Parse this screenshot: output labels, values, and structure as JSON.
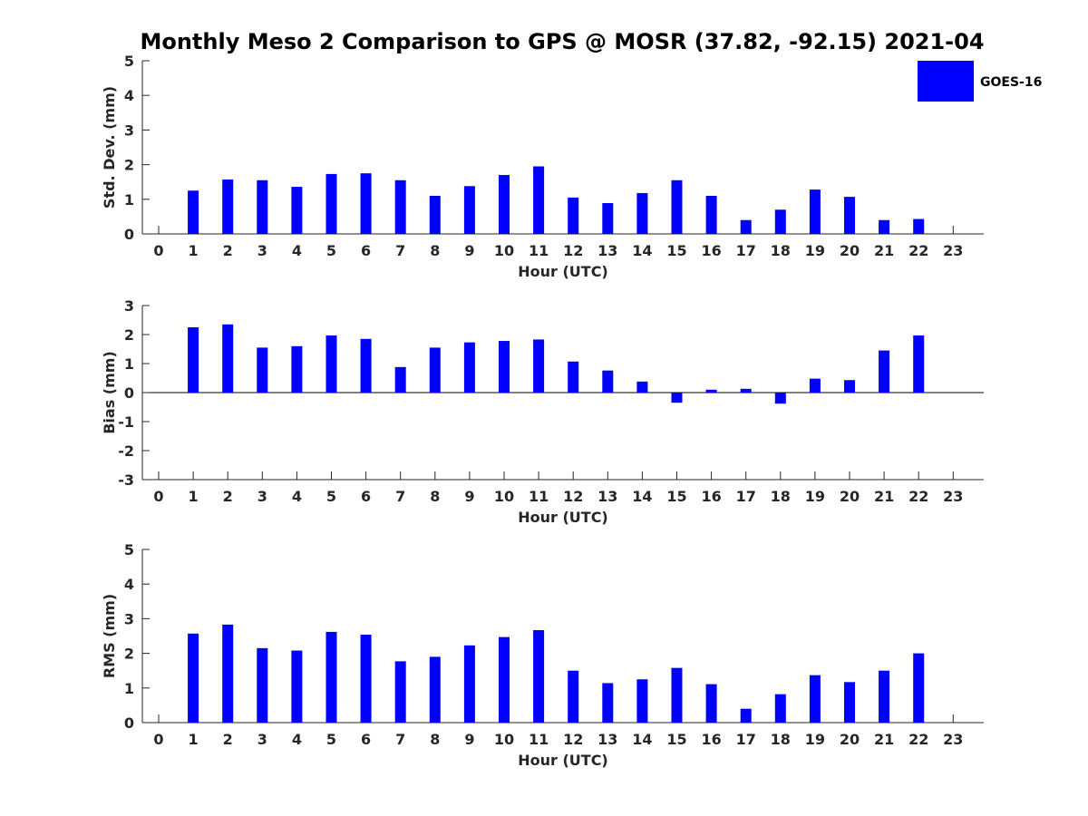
{
  "title": "Monthly Meso 2 Comparison to GPS @ MOSR (37.82, -92.15) 2021-04",
  "legend": {
    "label": "GOES-16",
    "color": "#0000ff"
  },
  "chart_data": [
    {
      "type": "bar",
      "xlabel": "Hour (UTC)",
      "ylabel": "Std. Dev. (mm)",
      "ylim": [
        0,
        5
      ],
      "yticks": [
        "0",
        "1",
        "2",
        "3",
        "4",
        "5"
      ],
      "xticks": [
        "0",
        "1",
        "2",
        "3",
        "4",
        "5",
        "6",
        "7",
        "8",
        "9",
        "10",
        "11",
        "12",
        "13",
        "14",
        "15",
        "16",
        "17",
        "18",
        "19",
        "20",
        "21",
        "22",
        "23"
      ],
      "series": [
        {
          "name": "GOES-16",
          "values": [
            null,
            1.25,
            1.57,
            1.55,
            1.36,
            1.73,
            1.75,
            1.55,
            1.1,
            1.38,
            1.7,
            1.95,
            1.05,
            0.89,
            1.18,
            1.55,
            1.1,
            0.4,
            0.7,
            1.28,
            1.07,
            0.4,
            0.43,
            null
          ]
        }
      ]
    },
    {
      "type": "bar",
      "xlabel": "Hour (UTC)",
      "ylabel": "Bias (mm)",
      "ylim": [
        -3,
        3
      ],
      "yticks": [
        "-3",
        "-2",
        "-1",
        "0",
        "1",
        "2",
        "3"
      ],
      "xticks": [
        "0",
        "1",
        "2",
        "3",
        "4",
        "5",
        "6",
        "7",
        "8",
        "9",
        "10",
        "11",
        "12",
        "13",
        "14",
        "15",
        "16",
        "17",
        "18",
        "19",
        "20",
        "21",
        "22",
        "23"
      ],
      "series": [
        {
          "name": "GOES-16",
          "values": [
            null,
            2.25,
            2.35,
            1.55,
            1.6,
            1.97,
            1.85,
            0.88,
            1.55,
            1.73,
            1.78,
            1.83,
            1.07,
            0.76,
            0.38,
            -0.35,
            0.1,
            0.13,
            -0.38,
            0.48,
            0.43,
            1.45,
            1.97,
            null
          ]
        }
      ]
    },
    {
      "type": "bar",
      "xlabel": "Hour (UTC)",
      "ylabel": "RMS (mm)",
      "ylim": [
        0,
        5
      ],
      "yticks": [
        "0",
        "1",
        "2",
        "3",
        "4",
        "5"
      ],
      "xticks": [
        "0",
        "1",
        "2",
        "3",
        "4",
        "5",
        "6",
        "7",
        "8",
        "9",
        "10",
        "11",
        "12",
        "13",
        "14",
        "15",
        "16",
        "17",
        "18",
        "19",
        "20",
        "21",
        "22",
        "23"
      ],
      "series": [
        {
          "name": "GOES-16",
          "values": [
            null,
            2.57,
            2.83,
            2.15,
            2.08,
            2.62,
            2.54,
            1.77,
            1.9,
            2.23,
            2.47,
            2.67,
            1.5,
            1.14,
            1.25,
            1.58,
            1.11,
            0.4,
            0.82,
            1.37,
            1.17,
            1.5,
            2.0,
            null
          ]
        }
      ]
    }
  ]
}
